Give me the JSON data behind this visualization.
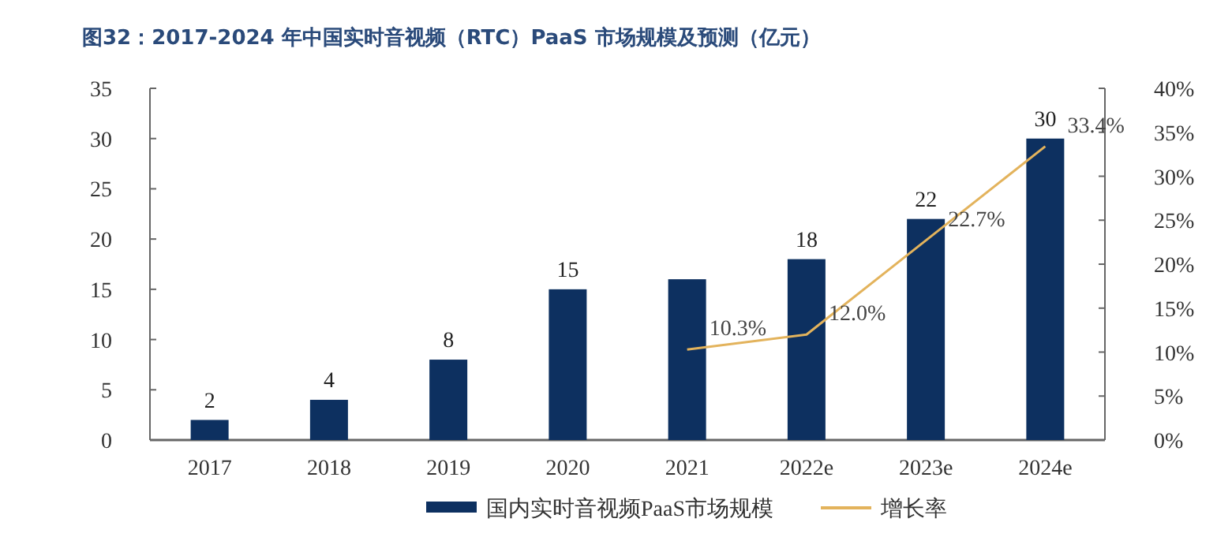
{
  "chart_data": {
    "type": "bar",
    "title": "图32：2017-2024 年中国实时音视频（RTC）PaaS 市场规模及预测（亿元）",
    "categories": [
      "2017",
      "2018",
      "2019",
      "2020",
      "2021",
      "2022e",
      "2023e",
      "2024e"
    ],
    "series": [
      {
        "name": "国内实时音视频PaaS市场规模",
        "color": "#0d3060",
        "values": [
          2,
          4,
          8,
          15,
          16,
          18,
          22,
          30
        ],
        "value_labels": [
          "2",
          "4",
          "8",
          "15",
          null,
          "18",
          "22",
          "30"
        ]
      },
      {
        "name": "增长率",
        "type": "line",
        "axis": "y2",
        "color": "#e3b35c",
        "values": [
          null,
          null,
          null,
          null,
          10.3,
          12.0,
          22.7,
          33.4
        ],
        "value_labels": [
          null,
          null,
          null,
          null,
          "10.3%",
          "12.0%",
          "22.7%",
          "33.4%"
        ]
      }
    ],
    "ylim": [
      0,
      35
    ],
    "yticks": [
      0,
      5,
      10,
      15,
      20,
      25,
      30,
      35
    ],
    "y2lim": [
      0,
      40
    ],
    "y2ticks": [
      {
        "value": 0,
        "label": "0%"
      },
      {
        "value": 5,
        "label": "5%"
      },
      {
        "value": 10,
        "label": "10%"
      },
      {
        "value": 15,
        "label": "15%"
      },
      {
        "value": 20,
        "label": "20%"
      },
      {
        "value": 25,
        "label": "25%"
      },
      {
        "value": 30,
        "label": "30%"
      },
      {
        "value": 35,
        "label": "35%"
      },
      {
        "value": 40,
        "label": "40%"
      }
    ],
    "grid": false,
    "legend": "bottom"
  }
}
